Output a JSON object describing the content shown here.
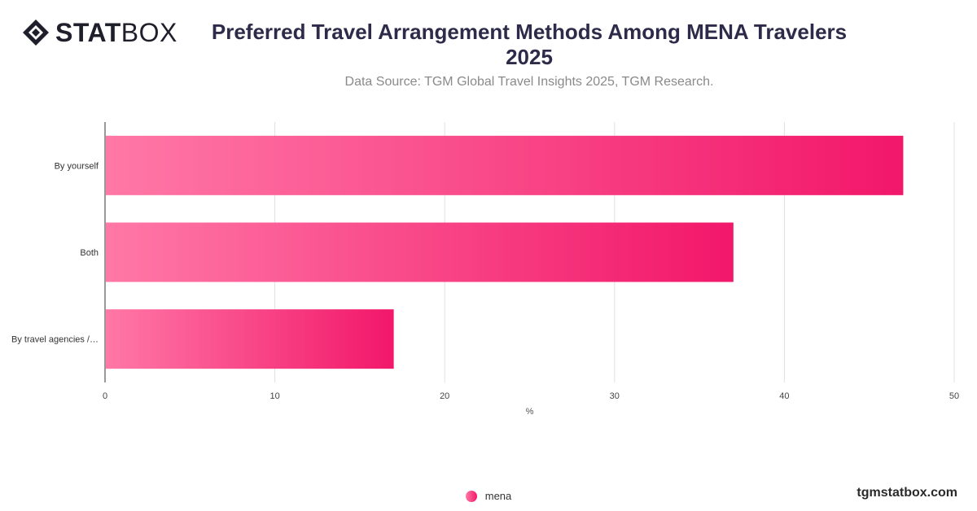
{
  "brand": {
    "logo_bold": "STAT",
    "logo_regular": "BOX",
    "watermark": "tgmstatbox.com"
  },
  "colors": {
    "bar_start": "#ff78a6",
    "bar_end": "#f2176a",
    "grid": "#e0e0e0",
    "axis": "#333333"
  },
  "chart_data": {
    "type": "bar",
    "orientation": "horizontal",
    "title": "Preferred Travel Arrangement Methods Among MENA Travelers 2025",
    "subtitle": "Data Source: TGM Global Travel Insights 2025, TGM Research.",
    "categories": [
      "By yourself",
      "Both",
      "By travel agencies /…"
    ],
    "series": [
      {
        "name": "mena",
        "values": [
          47,
          37,
          17
        ]
      }
    ],
    "xlabel": "%",
    "xlim": [
      0,
      50
    ],
    "xticks": [
      0,
      10,
      20,
      30,
      40,
      50
    ],
    "grid": true,
    "legend": "bottom-center"
  }
}
